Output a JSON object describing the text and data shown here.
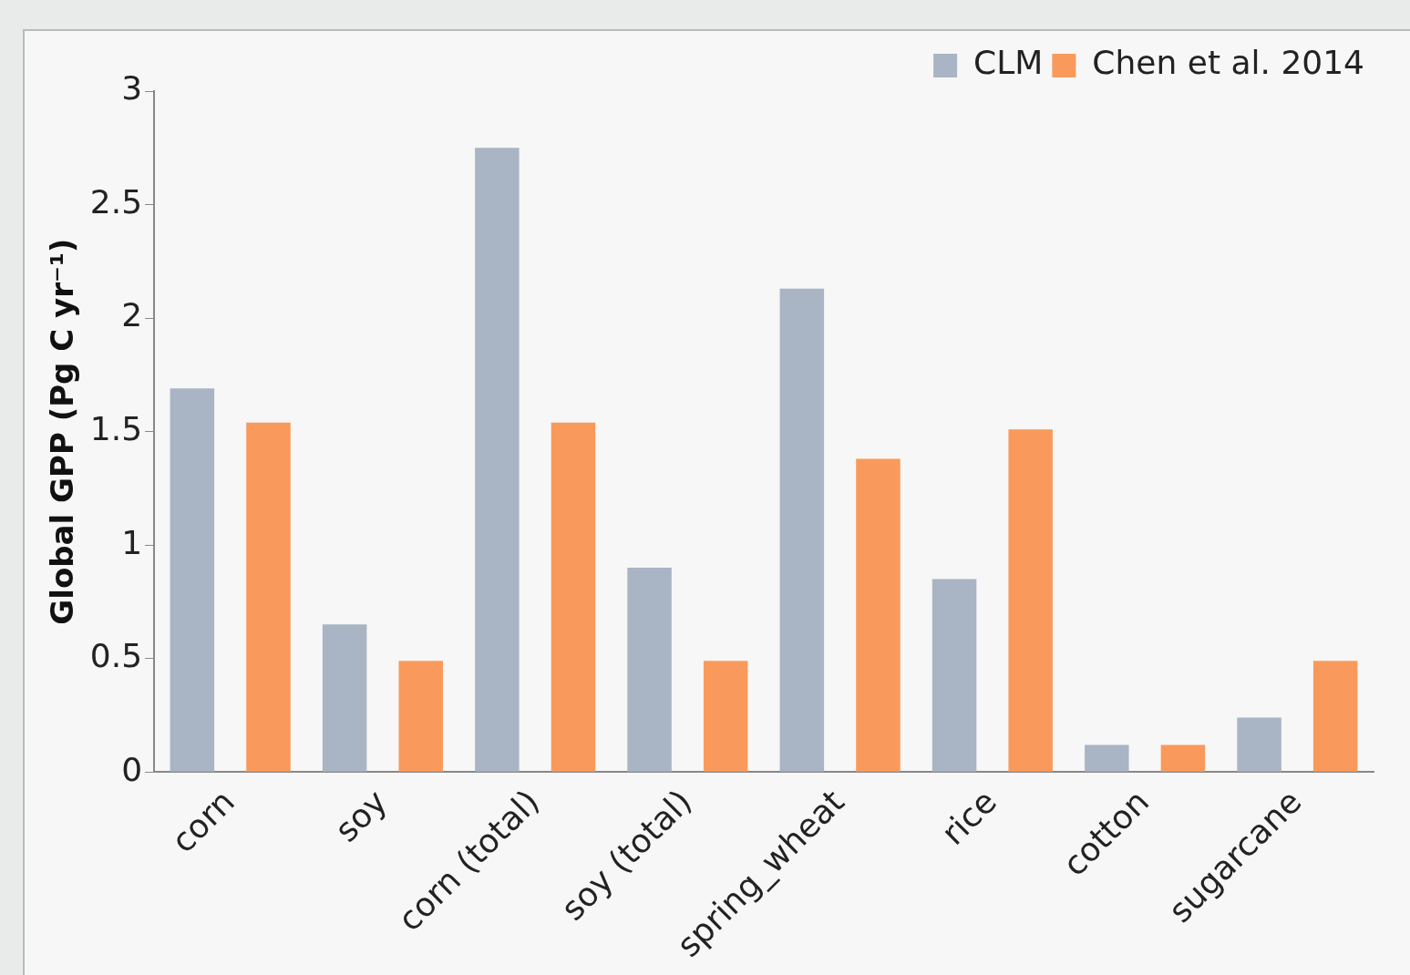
{
  "chart_data": {
    "type": "bar",
    "ylabel": "Global GPP (Pg C yr⁻¹)",
    "categories": [
      "corn",
      "soy",
      "corn (total)",
      "soy (total)",
      "spring_wheat",
      "rice",
      "cotton",
      "sugarcane"
    ],
    "series": [
      {
        "name": "CLM",
        "color": "#a9b4c4",
        "values": [
          1.69,
          0.65,
          2.75,
          0.9,
          2.13,
          0.85,
          0.12,
          0.24
        ]
      },
      {
        "name": "Chen et al. 2014",
        "color": "#f99a5c",
        "values": [
          1.54,
          0.49,
          1.54,
          0.49,
          1.38,
          1.51,
          0.12,
          0.49
        ]
      }
    ],
    "ylim": [
      0,
      3
    ],
    "yticks": [
      0,
      0.5,
      1,
      1.5,
      2,
      2.5,
      3
    ],
    "grid": false,
    "legend": "top right"
  }
}
